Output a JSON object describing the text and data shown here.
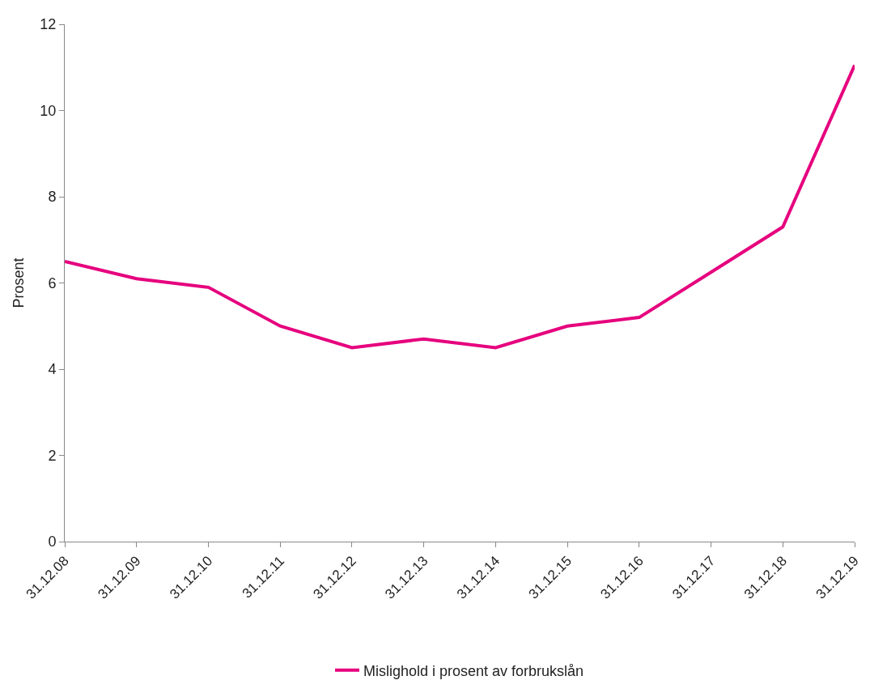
{
  "chart_data": {
    "type": "line",
    "ylabel": "Prosent",
    "categories": [
      "31.12.08",
      "31.12.09",
      "31.12.10",
      "31.12.11",
      "31.12.12",
      "31.12.13",
      "31.12.14",
      "31.12.15",
      "31.12.16",
      "31.12.17",
      "31.12.18",
      "31.12.19"
    ],
    "series": [
      {
        "name": "Mislighold i prosent av forbrukslån",
        "color": "#e6007e",
        "values": [
          6.5,
          6.1,
          5.9,
          5.0,
          4.5,
          4.7,
          4.5,
          5.0,
          5.2,
          6.25,
          7.3,
          11.05
        ]
      }
    ],
    "ylim": [
      0,
      12
    ],
    "yticks": [
      0,
      2,
      4,
      6,
      8,
      10,
      12
    ],
    "legend": "bottom",
    "marker": "none",
    "line_style": "solid"
  }
}
